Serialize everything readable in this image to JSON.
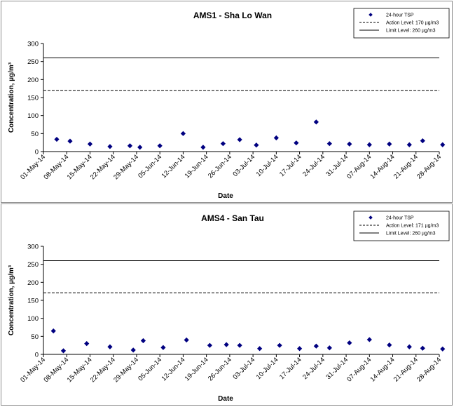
{
  "chart_data": [
    {
      "type": "scatter",
      "title": "AMS1 - Sha Lo Wan",
      "xlabel": "Date",
      "ylabel": "Concentration, µg/m³",
      "ylim": [
        0,
        300
      ],
      "yticks": [
        "0",
        "50",
        "100",
        "150",
        "200",
        "250",
        "300"
      ],
      "xlim": [
        "01-May-14",
        "28-Aug-14"
      ],
      "xticks": [
        "01-May-14",
        "08-May-14",
        "15-May-14",
        "22-May-14",
        "29-May-14",
        "05-Jun-14",
        "12-Jun-14",
        "19-Jun-14",
        "26-Jun-14",
        "03-Jul-14",
        "10-Jul-14",
        "17-Jul-14",
        "24-Jul-14",
        "31-Jul-14",
        "07-Aug-14",
        "14-Aug-14",
        "21-Aug-14",
        "28-Aug-14"
      ],
      "grid": false,
      "legend_position": "top-right",
      "series": [
        {
          "name": "24-hour TSP",
          "color": "#000080",
          "marker": "diamond",
          "points": [
            {
              "x": "05-May-14",
              "y": 34
            },
            {
              "x": "09-May-14",
              "y": 29
            },
            {
              "x": "15-May-14",
              "y": 21
            },
            {
              "x": "21-May-14",
              "y": 14
            },
            {
              "x": "27-May-14",
              "y": 16
            },
            {
              "x": "30-May-14",
              "y": 12
            },
            {
              "x": "05-Jun-14",
              "y": 16
            },
            {
              "x": "12-Jun-14",
              "y": 50
            },
            {
              "x": "18-Jun-14",
              "y": 12
            },
            {
              "x": "24-Jun-14",
              "y": 22
            },
            {
              "x": "29-Jun-14",
              "y": 33
            },
            {
              "x": "04-Jul-14",
              "y": 18
            },
            {
              "x": "10-Jul-14",
              "y": 38
            },
            {
              "x": "16-Jul-14",
              "y": 24
            },
            {
              "x": "22-Jul-14",
              "y": 82
            },
            {
              "x": "26-Jul-14",
              "y": 22
            },
            {
              "x": "01-Aug-14",
              "y": 21
            },
            {
              "x": "07-Aug-14",
              "y": 19
            },
            {
              "x": "13-Aug-14",
              "y": 21
            },
            {
              "x": "19-Aug-14",
              "y": 19
            },
            {
              "x": "23-Aug-14",
              "y": 30
            },
            {
              "x": "29-Aug-14",
              "y": 19
            }
          ]
        }
      ],
      "reference_lines": [
        {
          "name": "Action Level: 170 µg/m3",
          "value": 170,
          "style": "dashed"
        },
        {
          "name": "Limit Level: 260 µg/m3",
          "value": 260,
          "style": "solid"
        }
      ]
    },
    {
      "type": "scatter",
      "title": "AMS4 - San Tau",
      "xlabel": "Date",
      "ylabel": "Concentration, µg/m³",
      "ylim": [
        0,
        300
      ],
      "yticks": [
        "0",
        "50",
        "100",
        "150",
        "200",
        "250",
        "300"
      ],
      "xlim": [
        "01-May-14",
        "28-Aug-14"
      ],
      "xticks": [
        "01-May-14",
        "08-May-14",
        "15-May-14",
        "22-May-14",
        "29-May-14",
        "05-Jun-14",
        "12-Jun-14",
        "19-Jun-14",
        "26-Jun-14",
        "03-Jul-14",
        "10-Jul-14",
        "17-Jul-14",
        "24-Jul-14",
        "31-Jul-14",
        "07-Aug-14",
        "14-Aug-14",
        "21-Aug-14",
        "28-Aug-14"
      ],
      "grid": false,
      "legend_position": "top-right",
      "series": [
        {
          "name": "24-hour TSP",
          "color": "#000080",
          "marker": "diamond",
          "points": [
            {
              "x": "04-May-14",
              "y": 65
            },
            {
              "x": "07-May-14",
              "y": 10
            },
            {
              "x": "14-May-14",
              "y": 30
            },
            {
              "x": "21-May-14",
              "y": 21
            },
            {
              "x": "28-May-14",
              "y": 12
            },
            {
              "x": "31-May-14",
              "y": 38
            },
            {
              "x": "06-Jun-14",
              "y": 19
            },
            {
              "x": "13-Jun-14",
              "y": 40
            },
            {
              "x": "20-Jun-14",
              "y": 25
            },
            {
              "x": "25-Jun-14",
              "y": 27
            },
            {
              "x": "29-Jun-14",
              "y": 25
            },
            {
              "x": "05-Jul-14",
              "y": 16
            },
            {
              "x": "11-Jul-14",
              "y": 25
            },
            {
              "x": "17-Jul-14",
              "y": 16
            },
            {
              "x": "22-Jul-14",
              "y": 23
            },
            {
              "x": "26-Jul-14",
              "y": 18
            },
            {
              "x": "01-Aug-14",
              "y": 32
            },
            {
              "x": "07-Aug-14",
              "y": 41
            },
            {
              "x": "13-Aug-14",
              "y": 26
            },
            {
              "x": "19-Aug-14",
              "y": 21
            },
            {
              "x": "23-Aug-14",
              "y": 17
            },
            {
              "x": "29-Aug-14",
              "y": 15
            }
          ]
        }
      ],
      "reference_lines": [
        {
          "name": "Action Level: 171 µg/m3",
          "value": 171,
          "style": "dashed"
        },
        {
          "name": "Limit Level: 260 µg/m3",
          "value": 260,
          "style": "solid"
        }
      ]
    }
  ]
}
